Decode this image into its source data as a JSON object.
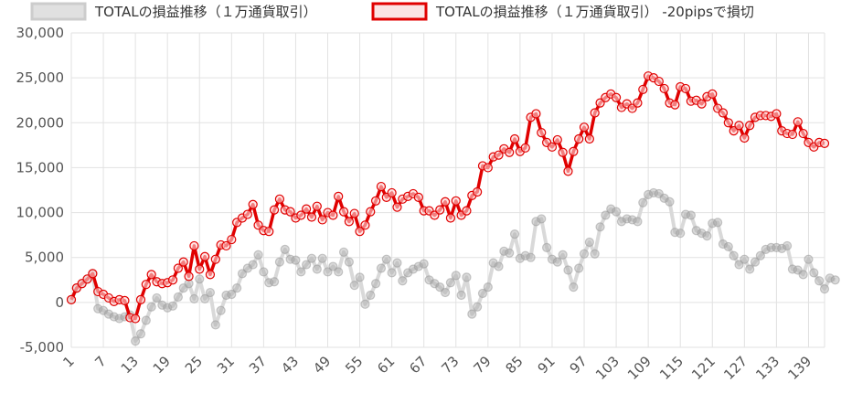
{
  "chart_data": {
    "type": "line",
    "x_start": 1,
    "x_end": 142,
    "x_tick_labels": [
      "1",
      "7",
      "13",
      "19",
      "25",
      "31",
      "37",
      "43",
      "49",
      "55",
      "61",
      "67",
      "73",
      "79",
      "85",
      "91",
      "97",
      "103",
      "109",
      "115",
      "121",
      "127",
      "133",
      "139"
    ],
    "ylim": [
      -5000,
      30000
    ],
    "y_tick_labels": [
      "-5,000",
      "0",
      "5,000",
      "10,000",
      "15,000",
      "20,000",
      "25,000",
      "30,000"
    ],
    "grid": true,
    "legend_position": "top",
    "series": [
      {
        "name": "TOTALの損益推移（１万通貨取引）",
        "color": "#cccccc",
        "values": [
          300,
          1600,
          2100,
          2600,
          3200,
          -700,
          -900,
          -1300,
          -1600,
          -1800,
          -1600,
          -1400,
          -4300,
          -3500,
          -2000,
          -500,
          500,
          -300,
          -600,
          -400,
          600,
          1600,
          2100,
          400,
          2600,
          400,
          1100,
          -2500,
          -900,
          800,
          900,
          1600,
          3200,
          3800,
          4200,
          5300,
          3400,
          2200,
          2300,
          4500,
          5900,
          4800,
          4700,
          3400,
          4200,
          4900,
          3700,
          4900,
          3400,
          4000,
          3400,
          5600,
          4500,
          1900,
          2800,
          -200,
          800,
          2100,
          3800,
          4800,
          3300,
          4400,
          2400,
          3300,
          3700,
          4000,
          4300,
          2500,
          2100,
          1700,
          1100,
          2200,
          3000,
          800,
          2800,
          -1300,
          -500,
          1000,
          1700,
          4400,
          4000,
          5700,
          5500,
          7600,
          4900,
          5200,
          5000,
          9000,
          9300,
          6100,
          4800,
          4500,
          5300,
          3600,
          1700,
          3800,
          5400,
          6700,
          5400,
          8400,
          9700,
          10400,
          10100,
          9000,
          9300,
          9200,
          9000,
          11100,
          12000,
          12200,
          12100,
          11600,
          11200,
          7800,
          7700,
          9800,
          9700,
          8000,
          7700,
          7400,
          8800,
          8900,
          6500,
          6200,
          5200,
          4200,
          4800,
          3700,
          4500,
          5200,
          5900,
          6100,
          6100,
          6000,
          6300,
          3700,
          3600,
          3100,
          4800,
          3300,
          2400,
          1500,
          2700,
          2500
        ]
      },
      {
        "name": "TOTALの損益推移（１万通貨取引） -20pipsで損切",
        "color": "#e00000",
        "values": [
          300,
          1600,
          2100,
          2600,
          3200,
          1200,
          900,
          500,
          100,
          300,
          200,
          -1700,
          -1800,
          300,
          2000,
          3100,
          2300,
          2100,
          2200,
          2500,
          3800,
          4500,
          2900,
          6300,
          3700,
          5100,
          3100,
          4800,
          6400,
          6300,
          7000,
          8900,
          9400,
          9800,
          10900,
          8600,
          8000,
          7900,
          10300,
          11500,
          10300,
          10100,
          9400,
          9700,
          10400,
          9500,
          10700,
          9200,
          10000,
          9700,
          11800,
          10100,
          9000,
          9900,
          7900,
          8600,
          10100,
          11300,
          12900,
          11700,
          12200,
          10600,
          11500,
          11800,
          12100,
          11700,
          10200,
          10200,
          9700,
          10300,
          11200,
          9400,
          11300,
          9700,
          10200,
          11900,
          12300,
          15200,
          15000,
          16200,
          16400,
          17100,
          16700,
          18200,
          16800,
          17200,
          20600,
          21000,
          18900,
          17800,
          17300,
          18100,
          16700,
          14600,
          16800,
          18200,
          19500,
          18200,
          21100,
          22200,
          22800,
          23200,
          22800,
          21700,
          22100,
          21600,
          22200,
          23700,
          25200,
          25000,
          24600,
          23800,
          22200,
          22000,
          24000,
          23800,
          22400,
          22500,
          22100,
          22900,
          23200,
          21600,
          21100,
          20000,
          19100,
          19700,
          18300,
          19700,
          20600,
          20800,
          20800,
          20700,
          21000,
          19100,
          18800,
          18700,
          20100,
          18800,
          17800,
          17300,
          17800,
          17700
        ]
      }
    ]
  }
}
